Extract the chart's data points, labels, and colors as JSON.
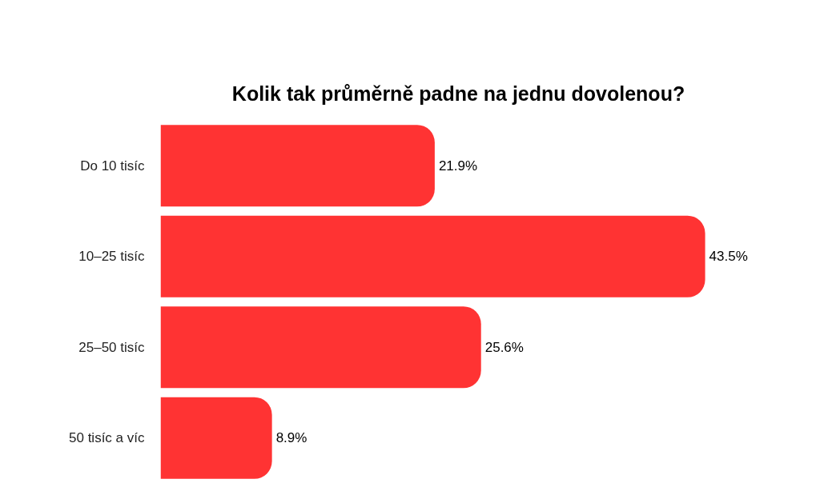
{
  "chart_data": {
    "type": "bar",
    "orientation": "horizontal",
    "title": "Kolik tak průměrně padne na jednu dovolenou?",
    "categories": [
      "Do 10 tisíc",
      "10–25 tisíc",
      "25–50 tisíc",
      "50 tisíc a víc"
    ],
    "values": [
      21.9,
      43.5,
      25.6,
      8.9
    ],
    "color": "#ff3333",
    "value_labels": [
      "21.9%",
      "43.5%",
      "25.6%",
      "8.9%"
    ]
  }
}
